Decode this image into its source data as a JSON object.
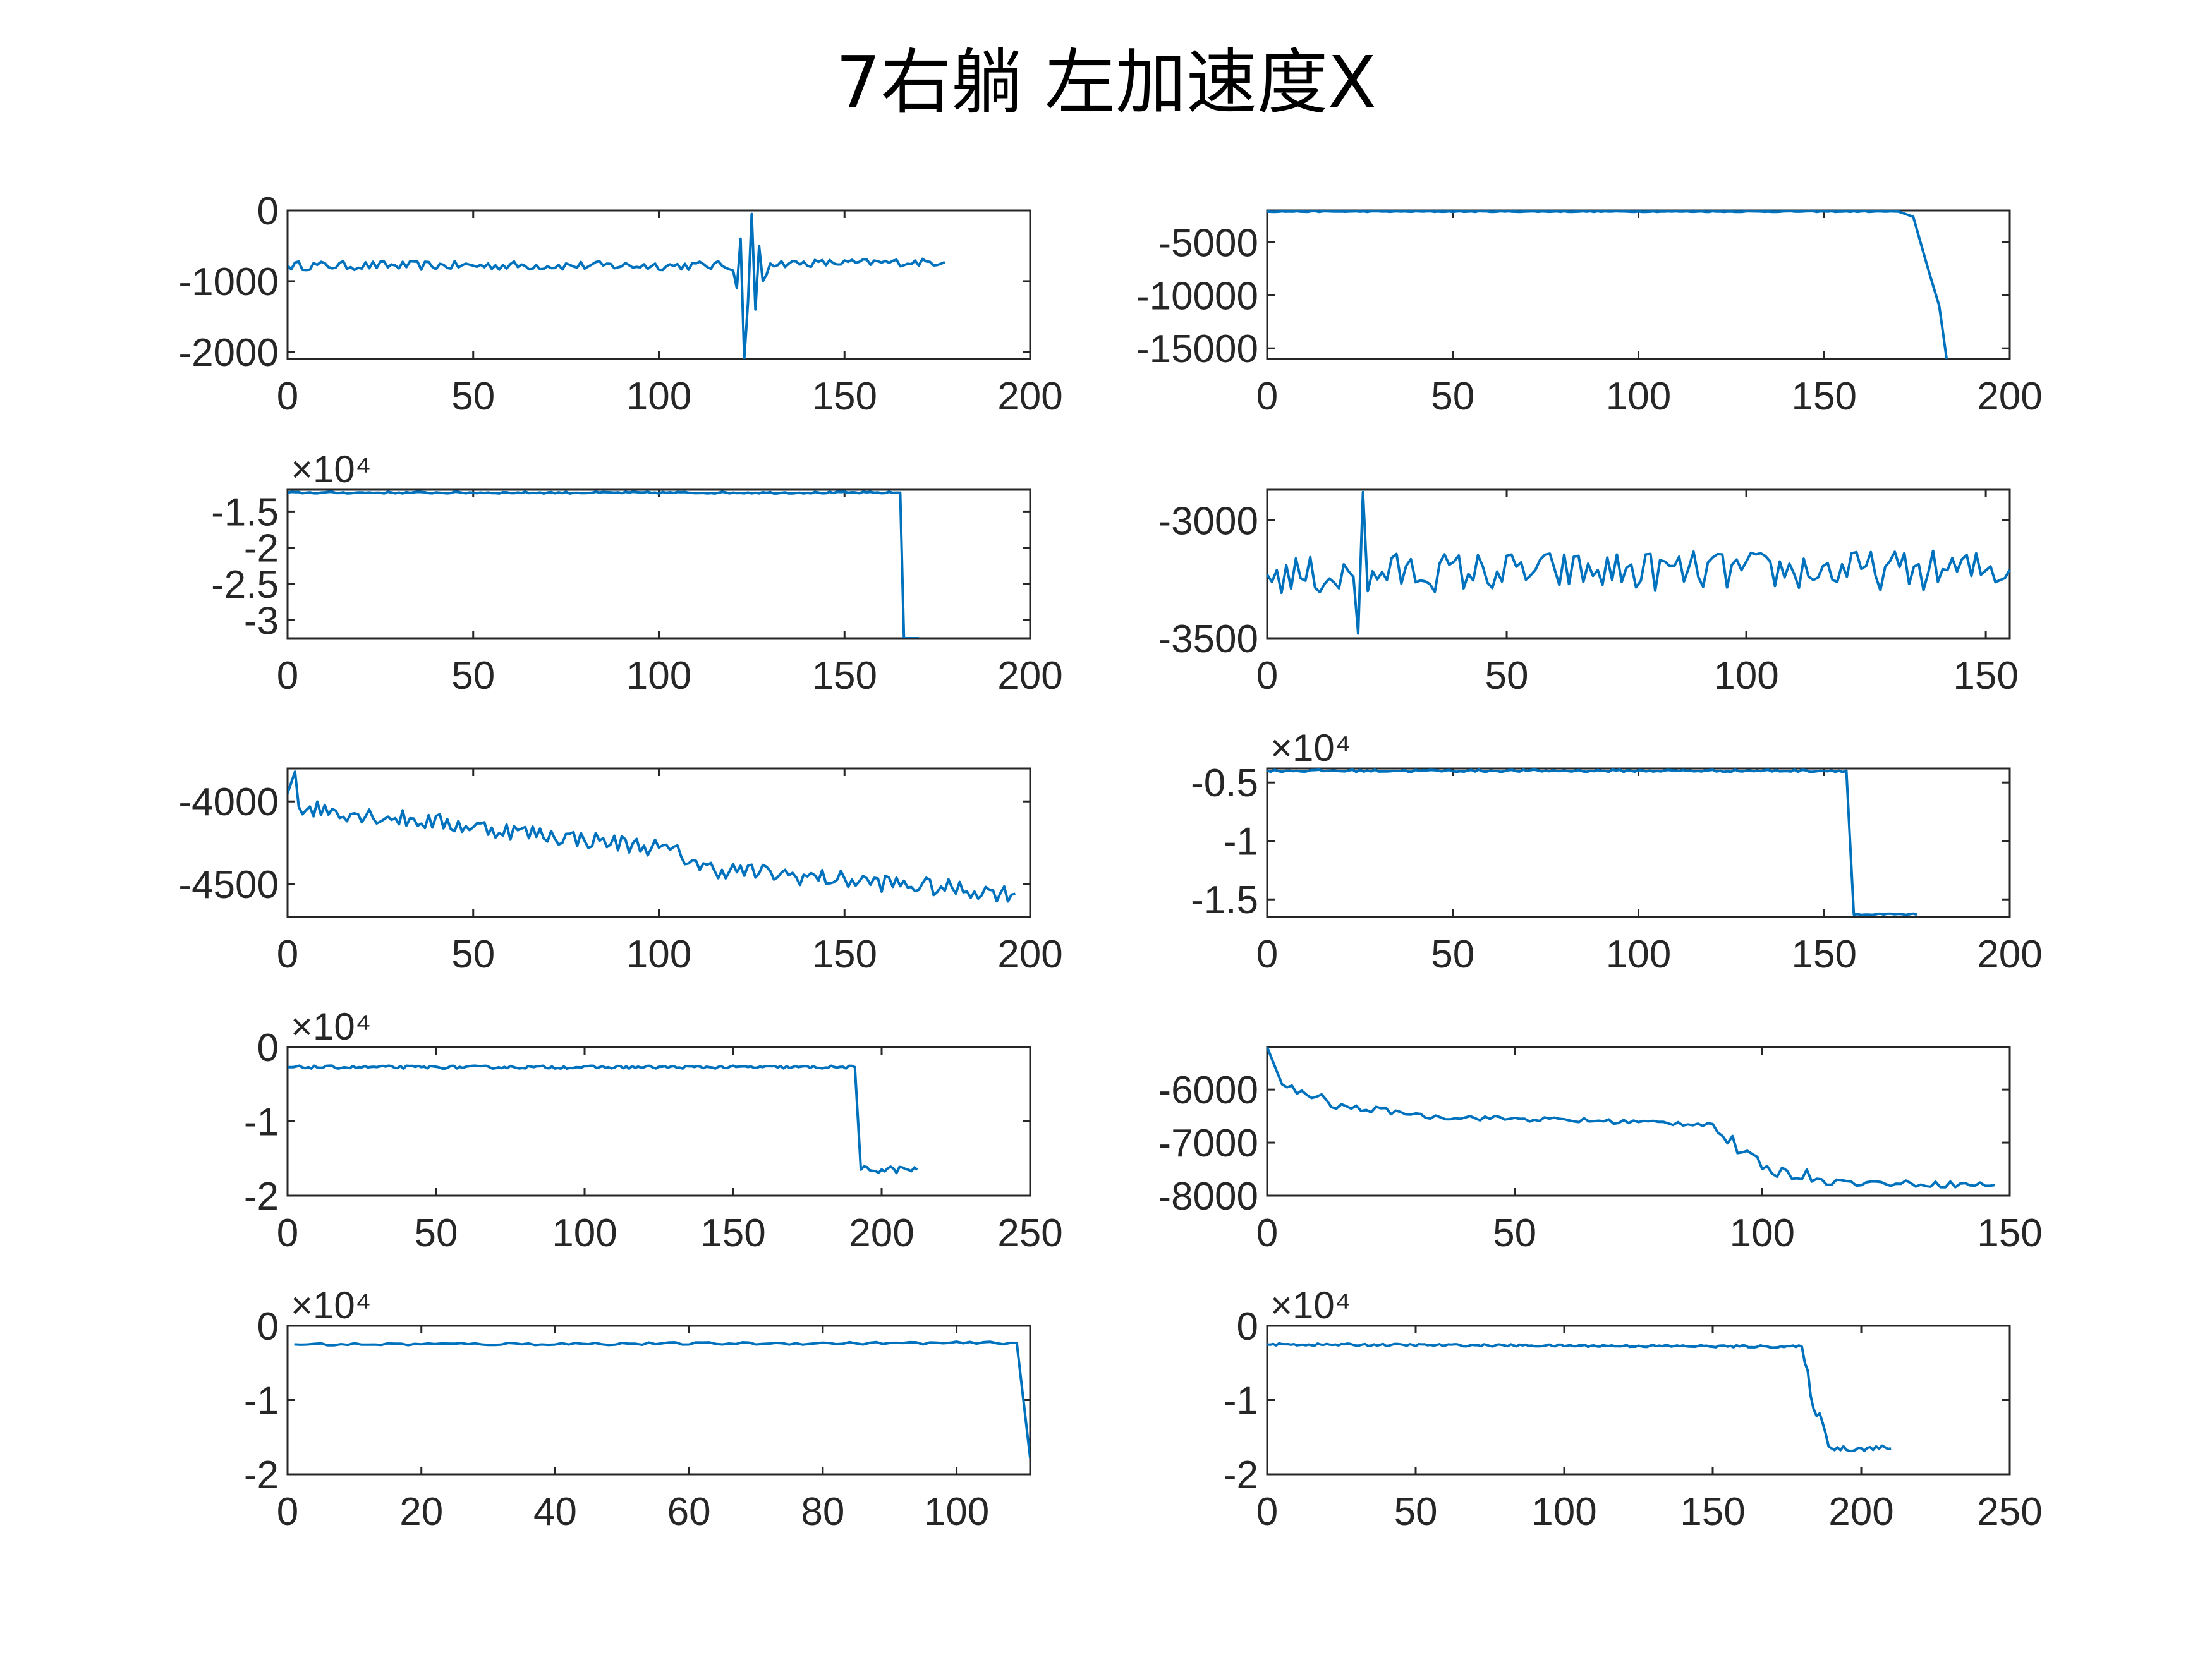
{
  "title": "7右躺  左加速度X",
  "colors": {
    "line": "#0072BD",
    "axis": "#262626",
    "background": "#ffffff"
  },
  "chart_data": [
    {
      "type": "line",
      "xlim": [
        0,
        200
      ],
      "ylim": [
        -2100,
        0
      ],
      "xticks": [
        0,
        50,
        100,
        150,
        200
      ],
      "xtick_labels": [
        "0",
        "50",
        "100",
        "150",
        "200"
      ],
      "yticks": [
        0,
        -1000,
        -2000
      ],
      "ytick_labels": [
        "0",
        "-1000",
        "-2000"
      ],
      "exponent": "",
      "x_end": 177,
      "segments": [
        {
          "x": [
            0,
            117
          ],
          "y": [
            -780,
            -780
          ],
          "noise": 65
        },
        {
          "x": [
            117,
            120
          ],
          "y": [
            -780,
            -850
          ],
          "noise": 30
        },
        {
          "x": [
            120,
            121
          ],
          "y": [
            -850,
            -1100
          ],
          "noise": 0
        },
        {
          "x": [
            121,
            122
          ],
          "y": [
            -1100,
            -400
          ],
          "noise": 0
        },
        {
          "x": [
            122,
            123
          ],
          "y": [
            -400,
            -2100
          ],
          "noise": 0
        },
        {
          "x": [
            123,
            124
          ],
          "y": [
            -2100,
            -1300
          ],
          "noise": 0
        },
        {
          "x": [
            124,
            125
          ],
          "y": [
            -1300,
            -50
          ],
          "noise": 0
        },
        {
          "x": [
            125,
            126
          ],
          "y": [
            -50,
            -1400
          ],
          "noise": 0
        },
        {
          "x": [
            126,
            127
          ],
          "y": [
            -1400,
            -500
          ],
          "noise": 0
        },
        {
          "x": [
            127,
            128
          ],
          "y": [
            -500,
            -1000
          ],
          "noise": 0
        },
        {
          "x": [
            128,
            130
          ],
          "y": [
            -1000,
            -750
          ],
          "noise": 40
        },
        {
          "x": [
            130,
            177
          ],
          "y": [
            -750,
            -730
          ],
          "noise": 55
        }
      ]
    },
    {
      "type": "line",
      "xlim": [
        0,
        200
      ],
      "ylim": [
        -16000,
        -2000
      ],
      "xticks": [
        0,
        50,
        100,
        150,
        200
      ],
      "xtick_labels": [
        "0",
        "50",
        "100",
        "150",
        "200"
      ],
      "yticks": [
        -5000,
        -10000,
        -15000
      ],
      "ytick_labels": [
        "-5000",
        "-10000",
        "-15000"
      ],
      "exponent": "",
      "x_end": 183,
      "segments": [
        {
          "x": [
            0,
            170
          ],
          "y": [
            -2100,
            -2100
          ],
          "noise": 40
        },
        {
          "x": [
            170,
            174
          ],
          "y": [
            -2100,
            -2600
          ],
          "noise": 0
        },
        {
          "x": [
            174,
            178
          ],
          "y": [
            -2600,
            -7500
          ],
          "noise": 0
        },
        {
          "x": [
            178,
            181
          ],
          "y": [
            -7500,
            -11000
          ],
          "noise": 0
        },
        {
          "x": [
            181,
            183
          ],
          "y": [
            -11000,
            -16000
          ],
          "noise": 0
        }
      ]
    },
    {
      "type": "line",
      "xlim": [
        0,
        200
      ],
      "ylim": [
        -3.25,
        -1.2
      ],
      "xticks": [
        0,
        50,
        100,
        150,
        200
      ],
      "xtick_labels": [
        "0",
        "50",
        "100",
        "150",
        "200"
      ],
      "yticks": [
        -1.5,
        -2,
        -2.5,
        -3
      ],
      "ytick_labels": [
        "-1.5",
        "-2",
        "-2.5",
        "-3"
      ],
      "exponent": "×10⁴",
      "x_end": 170,
      "segments": [
        {
          "x": [
            0,
            165
          ],
          "y": [
            -1.24,
            -1.24
          ],
          "noise": 0.012
        },
        {
          "x": [
            165,
            166
          ],
          "y": [
            -1.24,
            -3.25
          ],
          "noise": 0
        },
        {
          "x": [
            166,
            170
          ],
          "y": [
            -3.25,
            -3.25
          ],
          "noise": 0
        }
      ]
    },
    {
      "type": "line",
      "xlim": [
        0,
        155
      ],
      "ylim": [
        -3500,
        -2870
      ],
      "xticks": [
        0,
        50,
        100,
        150
      ],
      "xtick_labels": [
        "0",
        "50",
        "100",
        "150"
      ],
      "yticks": [
        -3000,
        -3500
      ],
      "ytick_labels": [
        "-3000",
        "-3500"
      ],
      "exponent": "",
      "x_end": 155,
      "segments": [
        {
          "x": [
            0,
            18
          ],
          "y": [
            -3230,
            -3240
          ],
          "noise": 85
        },
        {
          "x": [
            18,
            19
          ],
          "y": [
            -3240,
            -3480
          ],
          "noise": 0
        },
        {
          "x": [
            19,
            20
          ],
          "y": [
            -3480,
            -2880
          ],
          "noise": 0
        },
        {
          "x": [
            20,
            21
          ],
          "y": [
            -2880,
            -3300
          ],
          "noise": 0
        },
        {
          "x": [
            21,
            155
          ],
          "y": [
            -3220,
            -3210
          ],
          "noise": 85
        }
      ]
    },
    {
      "type": "line",
      "xlim": [
        0,
        200
      ],
      "ylim": [
        -4700,
        -3800
      ],
      "xticks": [
        0,
        50,
        100,
        150,
        200
      ],
      "xtick_labels": [
        "0",
        "50",
        "100",
        "150",
        "200"
      ],
      "yticks": [
        -4000,
        -4500
      ],
      "ytick_labels": [
        "-4000",
        "-4500"
      ],
      "exponent": "",
      "x_end": 196,
      "segments": [
        {
          "x": [
            0,
            2
          ],
          "y": [
            -3950,
            -3820
          ],
          "noise": 0
        },
        {
          "x": [
            2,
            100
          ],
          "y": [
            -4030,
            -4280
          ],
          "noise": 55
        },
        {
          "x": [
            100,
            110
          ],
          "y": [
            -4280,
            -4360
          ],
          "noise": 60
        },
        {
          "x": [
            110,
            196
          ],
          "y": [
            -4400,
            -4560
          ],
          "noise": 55
        }
      ]
    },
    {
      "type": "line",
      "xlim": [
        0,
        200
      ],
      "ylim": [
        -1.65,
        -0.38
      ],
      "xticks": [
        0,
        50,
        100,
        150,
        200
      ],
      "xtick_labels": [
        "0",
        "50",
        "100",
        "150",
        "200"
      ],
      "yticks": [
        -0.5,
        -1,
        -1.5
      ],
      "ytick_labels": [
        "-0.5",
        "-1",
        "-1.5"
      ],
      "exponent": "×10⁴",
      "x_end": 175,
      "segments": [
        {
          "x": [
            0,
            156
          ],
          "y": [
            -0.4,
            -0.4
          ],
          "noise": 0.01
        },
        {
          "x": [
            156,
            158
          ],
          "y": [
            -0.4,
            -1.63
          ],
          "noise": 0
        },
        {
          "x": [
            158,
            175
          ],
          "y": [
            -1.63,
            -1.63
          ],
          "noise": 0.01
        }
      ]
    },
    {
      "type": "line",
      "xlim": [
        0,
        250
      ],
      "ylim": [
        -2,
        0
      ],
      "xticks": [
        0,
        50,
        100,
        150,
        200,
        250
      ],
      "xtick_labels": [
        "0",
        "50",
        "100",
        "150",
        "200",
        "250"
      ],
      "yticks": [
        0,
        -1,
        -2
      ],
      "ytick_labels": [
        "0",
        "-1",
        "-2"
      ],
      "exponent": "×10⁴",
      "x_end": 212,
      "segments": [
        {
          "x": [
            0,
            191
          ],
          "y": [
            -0.27,
            -0.27
          ],
          "noise": 0.02
        },
        {
          "x": [
            191,
            193
          ],
          "y": [
            -0.27,
            -1.65
          ],
          "noise": 0
        },
        {
          "x": [
            193,
            212
          ],
          "y": [
            -1.65,
            -1.65
          ],
          "noise": 0.05
        }
      ]
    },
    {
      "type": "line",
      "xlim": [
        0,
        150
      ],
      "ylim": [
        -8000,
        -5200
      ],
      "xticks": [
        0,
        50,
        100,
        150
      ],
      "xtick_labels": [
        "0",
        "50",
        "100",
        "150"
      ],
      "yticks": [
        -6000,
        -7000,
        -8000
      ],
      "ytick_labels": [
        "-6000",
        "-7000",
        "-8000"
      ],
      "exponent": "",
      "x_end": 147,
      "segments": [
        {
          "x": [
            0,
            3
          ],
          "y": [
            -5200,
            -5900
          ],
          "noise": 0
        },
        {
          "x": [
            3,
            12
          ],
          "y": [
            -5950,
            -6200
          ],
          "noise": 90
        },
        {
          "x": [
            12,
            30
          ],
          "y": [
            -6300,
            -6450
          ],
          "noise": 60
        },
        {
          "x": [
            30,
            90
          ],
          "y": [
            -6500,
            -6650
          ],
          "noise": 50
        },
        {
          "x": [
            90,
            100
          ],
          "y": [
            -6700,
            -7500
          ],
          "noise": 150
        },
        {
          "x": [
            100,
            115
          ],
          "y": [
            -7500,
            -7700
          ],
          "noise": 120
        },
        {
          "x": [
            115,
            147
          ],
          "y": [
            -7750,
            -7800
          ],
          "noise": 60
        }
      ]
    },
    {
      "type": "line",
      "xlim": [
        0,
        111
      ],
      "ylim": [
        -2,
        0
      ],
      "xticks": [
        0,
        20,
        40,
        60,
        80,
        100
      ],
      "xtick_labels": [
        "0",
        "20",
        "40",
        "60",
        "80",
        "100"
      ],
      "yticks": [
        0,
        -1,
        -2
      ],
      "ytick_labels": [
        "0",
        "-1",
        "-2"
      ],
      "exponent": "×10⁴",
      "x_end": 111,
      "segments": [
        {
          "x": [
            1,
            109
          ],
          "y": [
            -0.25,
            -0.23
          ],
          "noise": 0.018
        },
        {
          "x": [
            109,
            111
          ],
          "y": [
            -0.23,
            -1.78
          ],
          "noise": 0
        }
      ]
    },
    {
      "type": "line",
      "xlim": [
        0,
        250
      ],
      "ylim": [
        -2,
        0
      ],
      "xticks": [
        0,
        50,
        100,
        150,
        200,
        250
      ],
      "xtick_labels": [
        "0",
        "50",
        "100",
        "150",
        "200",
        "250"
      ],
      "yticks": [
        0,
        -1,
        -2
      ],
      "ytick_labels": [
        "0",
        "-1",
        "-2"
      ],
      "exponent": "×10⁴",
      "x_end": 210,
      "segments": [
        {
          "x": [
            0,
            180
          ],
          "y": [
            -0.25,
            -0.28
          ],
          "noise": 0.015
        },
        {
          "x": [
            180,
            183
          ],
          "y": [
            -0.3,
            -0.95
          ],
          "noise": 0.15
        },
        {
          "x": [
            183,
            190
          ],
          "y": [
            -0.95,
            -1.65
          ],
          "noise": 0.08
        },
        {
          "x": [
            190,
            210
          ],
          "y": [
            -1.65,
            -1.65
          ],
          "noise": 0.04
        }
      ]
    }
  ]
}
